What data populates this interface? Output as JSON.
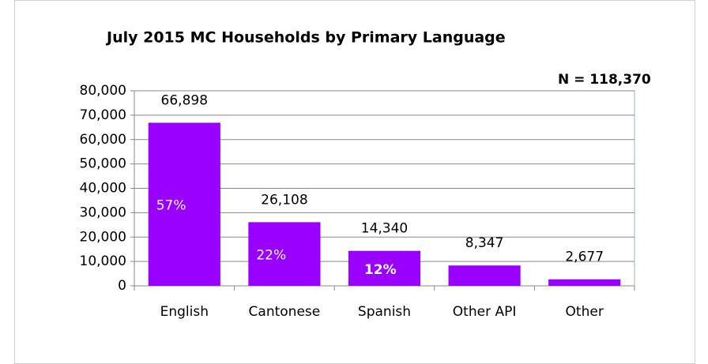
{
  "chart_data": {
    "type": "bar",
    "title": "July 2015 MC Households by Primary Language",
    "annotation": "N = 118,370",
    "categories": [
      "English",
      "Cantonese",
      "Spanish",
      "Other API",
      "Other"
    ],
    "values": [
      66898,
      26108,
      14340,
      8347,
      2677
    ],
    "value_labels": [
      "66,898",
      "26,108",
      "14,340",
      "8,347",
      "2,677"
    ],
    "share_values": [
      57,
      22,
      12
    ],
    "share_labels": [
      "57%",
      "22%",
      "12%"
    ],
    "share_label_bold": [
      false,
      false,
      true
    ],
    "color": "#9900ff",
    "ylim": [
      0,
      80000
    ],
    "yticks": [
      0,
      {
        "value": 10000,
        "label": "10,000"
      },
      {
        "value": 20000,
        "label": "20,000"
      },
      {
        "value": 30000,
        "label": "30,000"
      },
      {
        "value": 40000,
        "label": "40,000"
      },
      {
        "value": 50000,
        "label": "50,000"
      },
      {
        "value": 60000,
        "label": "60,000"
      },
      {
        "value": 70000,
        "label": "70,000"
      },
      {
        "value": 80000,
        "label": "80,000"
      }
    ],
    "grid": true
  }
}
